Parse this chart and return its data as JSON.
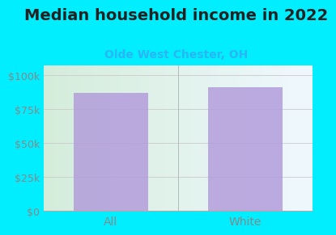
{
  "title": "Median household income in 2022",
  "subtitle": "Olde West Chester, OH",
  "categories": [
    "All",
    "White"
  ],
  "values": [
    87000,
    91000
  ],
  "bar_color": "#b39ddb",
  "bar_alpha": 0.85,
  "background_color": "#00eeff",
  "plot_bg_left": "#d4edda",
  "plot_bg_right": "#f0f8ff",
  "yticks": [
    0,
    25000,
    50000,
    75000,
    100000
  ],
  "ytick_labels": [
    "$0",
    "$25k",
    "$50k",
    "$75k",
    "$100k"
  ],
  "ylim": [
    0,
    107000
  ],
  "title_fontsize": 14,
  "subtitle_fontsize": 10,
  "tick_fontsize": 9,
  "title_color": "#222222",
  "subtitle_color": "#29b6f6",
  "tick_color": "#888888",
  "bar_width": 0.55,
  "separator_color": "#aaaaaa",
  "grid_color": "#cccccc"
}
